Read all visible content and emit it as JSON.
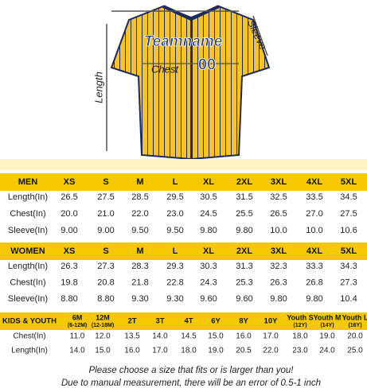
{
  "jersey": {
    "team": "Teamname",
    "number": "00",
    "chest": "Chest",
    "length": "Length",
    "sleeve": "Sleeve"
  },
  "men": {
    "header": [
      "MEN",
      "XS",
      "S",
      "M",
      "L",
      "XL",
      "2XL",
      "3XL",
      "4XL",
      "5XL"
    ],
    "rows": [
      [
        "Length(In)",
        "26.5",
        "27.5",
        "28.5",
        "29.5",
        "30.5",
        "31.5",
        "32.5",
        "33.5",
        "34.5"
      ],
      [
        "Chest(In)",
        "20.0",
        "21.0",
        "22.0",
        "23.0",
        "24.5",
        "25.5",
        "26.5",
        "27.0",
        "27.5"
      ],
      [
        "Sleeve(In)",
        "9.00",
        "9.00",
        "9.50",
        "9.50",
        "9.80",
        "9.80",
        "10.0",
        "10.0",
        "10.6"
      ]
    ]
  },
  "women": {
    "header": [
      "WOMEN",
      "XS",
      "S",
      "M",
      "L",
      "XL",
      "2XL",
      "3XL",
      "4XL",
      "5XL"
    ],
    "rows": [
      [
        "Length(In)",
        "26.3",
        "27.3",
        "28.3",
        "29.3",
        "30.3",
        "31.3",
        "32.3",
        "33.3",
        "34.3"
      ],
      [
        "Chest(In)",
        "19.8",
        "20.8",
        "21.8",
        "22.8",
        "24.3",
        "25.3",
        "26.3",
        "26.8",
        "27.3"
      ],
      [
        "Sleeve(In)",
        "8.80",
        "8.80",
        "9.30",
        "9.30",
        "9.60",
        "9.60",
        "9.80",
        "9.80",
        "10.4"
      ]
    ]
  },
  "kids": {
    "header": [
      "KIDS & YOUTH",
      {
        "text": "6M",
        "sub": "(6-12M)"
      },
      {
        "text": "12M",
        "sub": "(12-18M)"
      },
      "2T",
      "3T",
      "4T",
      "6Y",
      "8Y",
      "10Y",
      {
        "text": "Youth S",
        "sub": "(12Y)"
      },
      {
        "text": "Youth M",
        "sub": "(14Y)"
      },
      {
        "text": "Youth L",
        "sub": "(16Y)"
      }
    ],
    "rows": [
      [
        "Chest(In)",
        "11.0",
        "12.0",
        "13.5",
        "14.0",
        "14.5",
        "15.0",
        "16.0",
        "17.0",
        "18.0",
        "19.0",
        "20.0"
      ],
      [
        "Length(In)",
        "14.0",
        "15.0",
        "16.0",
        "17.0",
        "18.0",
        "19.0",
        "20.5",
        "22.0",
        "23.0",
        "24.0",
        "25.0"
      ]
    ]
  },
  "notes": [
    "Please choose a size that fits or is larger than you!",
    "Due to manual measurement, there will be an error of 0.5-1 inch"
  ]
}
